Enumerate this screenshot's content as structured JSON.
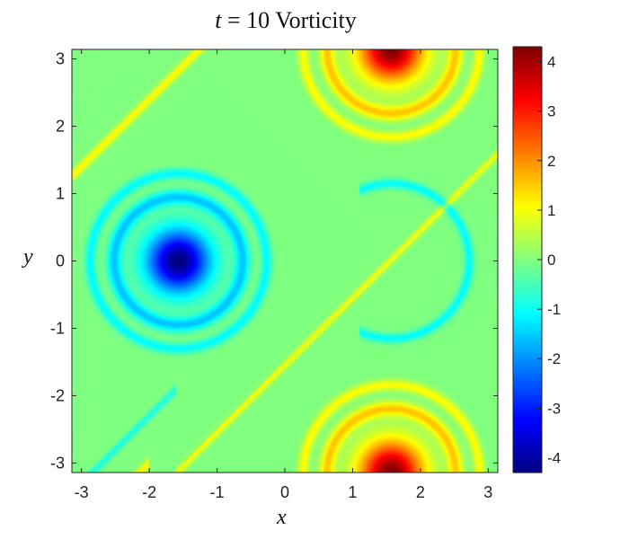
{
  "chart_data": {
    "type": "heatmap",
    "title": {
      "prefix": "t",
      "eq": " = ",
      "value": "10",
      "suffix": " Vorticity"
    },
    "xlabel": "x",
    "ylabel": "y",
    "xlim": [
      -3.14159,
      3.14159
    ],
    "ylim": [
      -3.14159,
      3.14159
    ],
    "x_ticks": [
      -3,
      -2,
      -1,
      0,
      1,
      2,
      3
    ],
    "y_ticks": [
      -3,
      -2,
      -1,
      0,
      1,
      2,
      3
    ],
    "colorbar": {
      "colormap": "jet",
      "clim": [
        -4.3,
        4.3
      ],
      "ticks": [
        -4,
        -3,
        -2,
        -1,
        0,
        1,
        2,
        3,
        4
      ]
    },
    "field": {
      "vortices": [
        {
          "sign": "negative",
          "center": [
            -1.57,
            0.0
          ],
          "peak": -4.3
        },
        {
          "sign": "positive",
          "center": [
            1.57,
            3.14
          ],
          "peak": 4.3
        },
        {
          "sign": "positive",
          "center": [
            1.57,
            -3.14
          ],
          "peak": 4.3
        }
      ],
      "background_value": 0
    }
  }
}
